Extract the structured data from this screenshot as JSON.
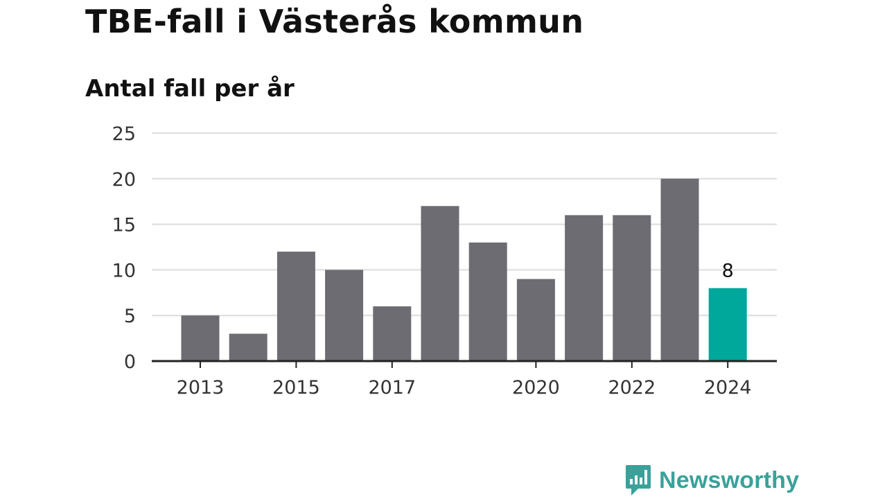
{
  "title": "TBE-fall i Västerås kommun",
  "subtitle": "Antal fall per år",
  "brand": {
    "name": "Newsworthy",
    "icon": "newsworthy-logo-icon"
  },
  "colors": {
    "bar": "#6d6c73",
    "highlight": "#00a79b",
    "grid": "#dcdcdc",
    "axis": "#222222",
    "brand": "#3aa19a"
  },
  "chart_data": {
    "type": "bar",
    "categories": [
      "2013",
      "2014",
      "2015",
      "2016",
      "2017",
      "2018",
      "2019",
      "2020",
      "2021",
      "2022",
      "2023",
      "2024"
    ],
    "values": [
      5,
      3,
      12,
      10,
      6,
      17,
      13,
      9,
      16,
      16,
      20,
      8
    ],
    "x_tick_labels": [
      "2013",
      "2015",
      "2017",
      "2020",
      "2022",
      "2024"
    ],
    "y_ticks": [
      0,
      5,
      10,
      15,
      20,
      25
    ],
    "ylim": [
      0,
      25
    ],
    "highlight_category": "2024",
    "data_labels": [
      {
        "category": "2024",
        "text": "8"
      }
    ],
    "grid": true,
    "legend": false
  }
}
